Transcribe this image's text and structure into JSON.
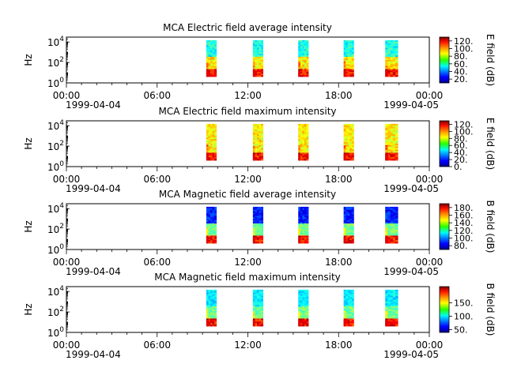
{
  "chart_data": [
    {
      "type": "heatmap",
      "title": "MCA  Electric field average intensity",
      "ylabel": "Hz",
      "xlim": [
        "1999-04-04T00:00",
        "1999-04-05T00:00"
      ],
      "ylim": [
        1,
        30000
      ],
      "yscale": "log",
      "x_ticks": [
        "00:00",
        "06:00",
        "12:00",
        "18:00",
        "00:00"
      ],
      "x_date_start": "1999-04-04",
      "x_date_end": "1999-04-05",
      "y_ticks": [
        {
          "base": "10",
          "exp": "0",
          "value": 1
        },
        {
          "base": "10",
          "exp": "2",
          "value": 100
        },
        {
          "base": "10",
          "exp": "4",
          "value": 10000
        }
      ],
      "data_blocks": [
        {
          "start": "09:15",
          "end": "09:55"
        },
        {
          "start": "12:20",
          "end": "13:00"
        },
        {
          "start": "15:20",
          "end": "16:00"
        },
        {
          "start": "18:20",
          "end": "19:00"
        },
        {
          "start": "21:05",
          "end": "21:55"
        }
      ],
      "colorbar": {
        "label": "E field (dB)",
        "min": 10,
        "max": 130,
        "ticks": [
          "20.",
          "40.",
          "60.",
          "80.",
          "100.",
          "120."
        ],
        "tick_values": [
          20,
          40,
          60,
          80,
          100,
          120
        ]
      },
      "style": {
        "low_freq": "hot",
        "mid_freq": "warm",
        "high_freq": "cool"
      }
    },
    {
      "type": "heatmap",
      "title": "MCA  Electric field maximum intensity",
      "ylabel": "Hz",
      "xlim": [
        "1999-04-04T00:00",
        "1999-04-05T00:00"
      ],
      "ylim": [
        1,
        30000
      ],
      "yscale": "log",
      "x_ticks": [
        "00:00",
        "06:00",
        "12:00",
        "18:00",
        "00:00"
      ],
      "x_date_start": "1999-04-04",
      "x_date_end": "1999-04-05",
      "y_ticks": [
        {
          "base": "10",
          "exp": "0",
          "value": 1
        },
        {
          "base": "10",
          "exp": "2",
          "value": 100
        },
        {
          "base": "10",
          "exp": "4",
          "value": 10000
        }
      ],
      "data_blocks": [
        {
          "start": "09:15",
          "end": "09:55"
        },
        {
          "start": "12:20",
          "end": "13:00"
        },
        {
          "start": "15:20",
          "end": "16:00"
        },
        {
          "start": "18:20",
          "end": "19:00"
        },
        {
          "start": "21:05",
          "end": "21:55"
        }
      ],
      "colorbar": {
        "label": "E field (dB)",
        "min": 0,
        "max": 130,
        "ticks": [
          "0.",
          "20.",
          "40.",
          "60.",
          "80.",
          "100.",
          "120."
        ],
        "tick_values": [
          0,
          20,
          40,
          60,
          80,
          100,
          120
        ]
      },
      "style": {
        "low_freq": "hot",
        "mid_freq": "warm",
        "high_freq": "warm"
      }
    },
    {
      "type": "heatmap",
      "title": "MCA  Magnetic field average intensity",
      "ylabel": "Hz",
      "xlim": [
        "1999-04-04T00:00",
        "1999-04-05T00:00"
      ],
      "ylim": [
        1,
        30000
      ],
      "yscale": "log",
      "x_ticks": [
        "00:00",
        "06:00",
        "12:00",
        "18:00",
        "00:00"
      ],
      "x_date_start": "1999-04-04",
      "x_date_end": "1999-04-05",
      "y_ticks": [
        {
          "base": "10",
          "exp": "0",
          "value": 1
        },
        {
          "base": "10",
          "exp": "2",
          "value": 100
        },
        {
          "base": "10",
          "exp": "4",
          "value": 10000
        }
      ],
      "data_blocks": [
        {
          "start": "09:15",
          "end": "09:55"
        },
        {
          "start": "12:20",
          "end": "13:00"
        },
        {
          "start": "15:20",
          "end": "16:00"
        },
        {
          "start": "18:20",
          "end": "19:00"
        },
        {
          "start": "21:05",
          "end": "21:55"
        }
      ],
      "colorbar": {
        "label": "B field (dB)",
        "min": 70,
        "max": 190,
        "ticks": [
          "80.",
          "100.",
          "120.",
          "140.",
          "160.",
          "180."
        ],
        "tick_values": [
          80,
          100,
          120,
          140,
          160,
          180
        ]
      },
      "style": {
        "low_freq": "hot",
        "mid_freq": "green",
        "high_freq": "blue"
      }
    },
    {
      "type": "heatmap",
      "title": "MCA  Magnetic field maximum intensity",
      "ylabel": "Hz",
      "xlim": [
        "1999-04-04T00:00",
        "1999-04-05T00:00"
      ],
      "ylim": [
        1,
        30000
      ],
      "yscale": "log",
      "x_ticks": [
        "00:00",
        "06:00",
        "12:00",
        "18:00",
        "00:00"
      ],
      "x_date_start": "1999-04-04",
      "x_date_end": "1999-04-05",
      "y_ticks": [
        {
          "base": "10",
          "exp": "0",
          "value": 1
        },
        {
          "base": "10",
          "exp": "2",
          "value": 100
        },
        {
          "base": "10",
          "exp": "4",
          "value": 10000
        }
      ],
      "data_blocks": [
        {
          "start": "09:15",
          "end": "09:55"
        },
        {
          "start": "12:20",
          "end": "13:00"
        },
        {
          "start": "15:20",
          "end": "16:00"
        },
        {
          "start": "18:20",
          "end": "19:00"
        },
        {
          "start": "21:05",
          "end": "21:55"
        }
      ],
      "colorbar": {
        "label": "B field (dB)",
        "min": 40,
        "max": 210,
        "ticks": [
          "50.",
          "100.",
          "150."
        ],
        "tick_values": [
          50,
          100,
          150
        ]
      },
      "style": {
        "low_freq": "hot",
        "mid_freq": "green",
        "high_freq": "cyan"
      }
    }
  ]
}
